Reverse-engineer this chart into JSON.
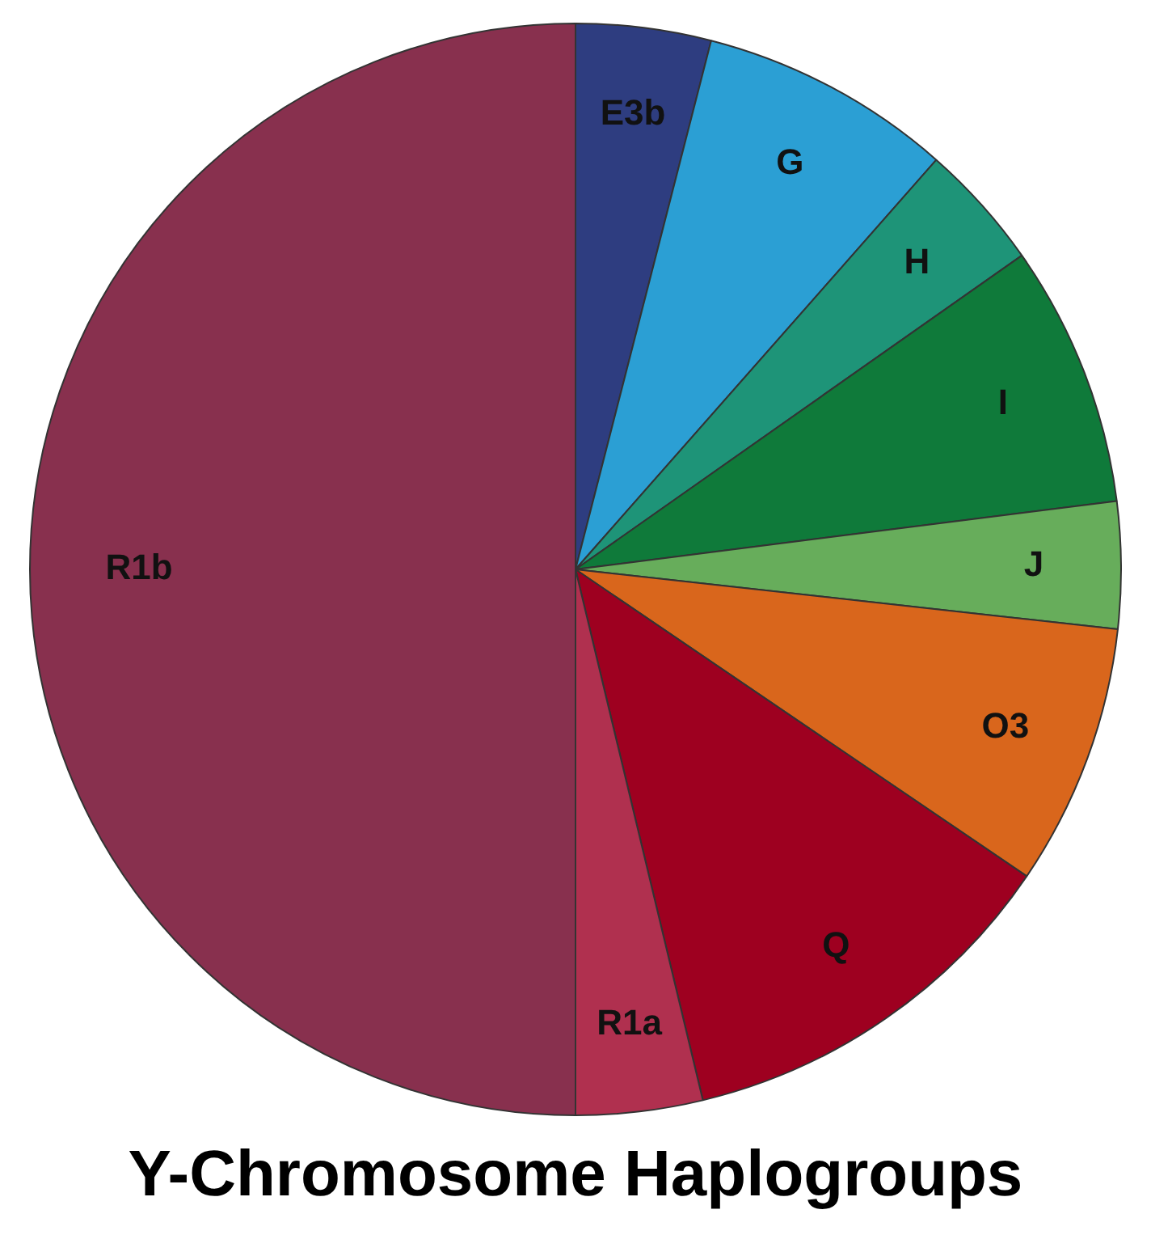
{
  "chart_data": {
    "type": "pie",
    "title": "Y-Chromosome Haplogroups",
    "categories": [
      "E3b",
      "G",
      "H",
      "I",
      "J",
      "O3",
      "Q",
      "R1a",
      "R1b"
    ],
    "values": [
      4,
      7.5,
      3.75,
      7.75,
      3.75,
      7.75,
      11.75,
      3.75,
      50
    ],
    "colors": [
      "#2e3d80",
      "#2b9fd4",
      "#1e9478",
      "#0f7a3a",
      "#67ad5b",
      "#d9661c",
      "#9e0020",
      "#b0304f",
      "#88304e"
    ],
    "legend": false
  }
}
